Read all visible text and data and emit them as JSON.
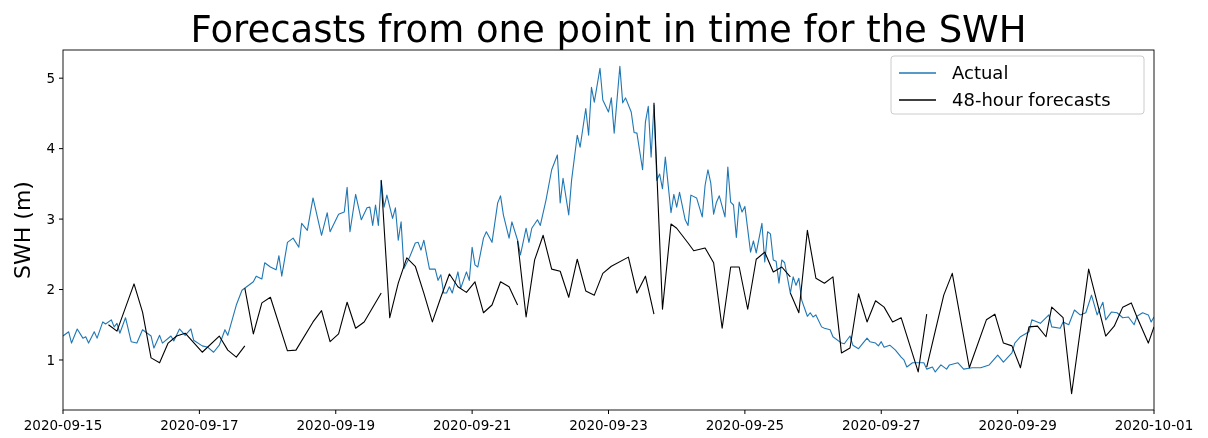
{
  "chart_data": {
    "type": "line",
    "title": "Forecasts from one point in time for the SWH",
    "ylabel": "SWH (m)",
    "xlim": [
      "2020-09-15",
      "2020-10-01"
    ],
    "xticks": [
      "2020-09-15",
      "2020-09-17",
      "2020-09-19",
      "2020-09-21",
      "2020-09-23",
      "2020-09-25",
      "2020-09-27",
      "2020-09-29",
      "2020-10-01"
    ],
    "ylim": [
      0.29,
      5.4
    ],
    "yticks": [
      1,
      2,
      3,
      4,
      5
    ],
    "grid": false,
    "legend": "top right",
    "line_style": "solid",
    "marker": "none",
    "series": [
      {
        "name": "Actual",
        "color": "#1f77b4",
        "x": [
          "2020-09-15T00:00",
          "2020-09-15T02:00",
          "2020-09-15T03:00",
          "2020-09-15T05:00",
          "2020-09-15T07:00",
          "2020-09-15T08:00",
          "2020-09-15T09:00",
          "2020-09-15T11:00",
          "2020-09-15T12:00",
          "2020-09-15T14:00",
          "2020-09-15T15:00",
          "2020-09-15T17:00",
          "2020-09-15T18:00",
          "2020-09-15T19:00",
          "2020-09-15T20:00",
          "2020-09-15T22:00",
          "2020-09-16T00:00",
          "2020-09-16T02:00",
          "2020-09-16T04:00",
          "2020-09-16T07:00",
          "2020-09-16T08:00",
          "2020-09-16T10:00",
          "2020-09-16T11:00",
          "2020-09-16T14:00",
          "2020-09-16T15:00",
          "2020-09-16T17:00",
          "2020-09-16T19:00",
          "2020-09-16T21:00",
          "2020-09-16T22:00",
          "2020-09-17T01:00",
          "2020-09-17T03:00",
          "2020-09-17T05:00",
          "2020-09-17T07:00",
          "2020-09-17T09:00",
          "2020-09-17T10:00",
          "2020-09-17T13:00",
          "2020-09-17T15:00",
          "2020-09-17T19:00",
          "2020-09-17T20:00",
          "2020-09-17T22:00",
          "2020-09-17T23:00",
          "2020-09-18T01:00",
          "2020-09-18T03:00",
          "2020-09-18T04:00",
          "2020-09-18T05:00",
          "2020-09-18T07:00",
          "2020-09-18T09:00",
          "2020-09-18T11:00",
          "2020-09-18T12:00",
          "2020-09-18T14:00",
          "2020-09-18T16:00",
          "2020-09-18T19:00",
          "2020-09-18T21:00",
          "2020-09-18T22:00",
          "2020-09-19T01:00",
          "2020-09-19T03:00",
          "2020-09-19T04:00",
          "2020-09-19T05:00",
          "2020-09-19T07:00",
          "2020-09-19T09:00",
          "2020-09-19T11:00",
          "2020-09-19T12:00",
          "2020-09-19T13:00",
          "2020-09-19T14:00",
          "2020-09-19T15:00",
          "2020-09-19T16:00",
          "2020-09-19T17:00",
          "2020-09-19T18:00",
          "2020-09-19T20:00",
          "2020-09-19T21:00",
          "2020-09-19T22:00",
          "2020-09-19T23:00",
          "2020-09-20T00:00",
          "2020-09-20T02:00",
          "2020-09-20T04:00",
          "2020-09-20T05:00",
          "2020-09-20T06:00",
          "2020-09-20T07:00",
          "2020-09-20T09:00",
          "2020-09-20T11:00",
          "2020-09-20T12:00",
          "2020-09-20T13:00",
          "2020-09-20T14:00",
          "2020-09-20T15:00",
          "2020-09-20T16:00",
          "2020-09-20T17:00",
          "2020-09-20T19:00",
          "2020-09-20T20:00",
          "2020-09-20T22:00",
          "2020-09-20T23:00",
          "2020-09-21T00:00",
          "2020-09-21T01:00",
          "2020-09-21T02:00",
          "2020-09-21T04:00",
          "2020-09-21T05:00",
          "2020-09-21T07:00",
          "2020-09-21T09:00",
          "2020-09-21T10:00",
          "2020-09-21T11:00",
          "2020-09-21T13:00",
          "2020-09-21T14:00",
          "2020-09-21T16:00",
          "2020-09-21T17:00",
          "2020-09-21T19:00",
          "2020-09-21T20:00",
          "2020-09-21T21:00",
          "2020-09-21T23:00",
          "2020-09-22T00:00",
          "2020-09-22T02:00",
          "2020-09-22T04:00",
          "2020-09-22T06:00",
          "2020-09-22T07:00",
          "2020-09-22T08:00",
          "2020-09-22T10:00",
          "2020-09-22T11:00",
          "2020-09-22T13:00",
          "2020-09-22T14:00",
          "2020-09-22T16:00",
          "2020-09-22T17:00",
          "2020-09-22T18:00",
          "2020-09-22T19:00",
          "2020-09-22T21:00",
          "2020-09-22T22:00",
          "2020-09-23T00:00",
          "2020-09-23T01:00",
          "2020-09-23T02:00",
          "2020-09-23T04:00",
          "2020-09-23T05:00",
          "2020-09-23T06:00",
          "2020-09-23T08:00",
          "2020-09-23T09:00",
          "2020-09-23T10:00",
          "2020-09-23T12:00",
          "2020-09-23T13:00",
          "2020-09-23T14:00",
          "2020-09-23T15:00",
          "2020-09-23T16:00",
          "2020-09-23T17:00",
          "2020-09-23T18:00",
          "2020-09-23T19:00",
          "2020-09-23T20:00",
          "2020-09-23T22:00",
          "2020-09-23T23:00",
          "2020-09-24T00:00",
          "2020-09-24T01:00",
          "2020-09-24T03:00",
          "2020-09-24T04:00",
          "2020-09-24T05:00",
          "2020-09-24T07:00",
          "2020-09-24T09:00",
          "2020-09-24T10:00",
          "2020-09-24T11:00",
          "2020-09-24T12:00",
          "2020-09-24T13:00",
          "2020-09-24T14:00",
          "2020-09-24T15:00",
          "2020-09-24T17:00",
          "2020-09-24T18:00",
          "2020-09-24T19:00",
          "2020-09-24T20:00",
          "2020-09-24T21:00",
          "2020-09-24T22:00",
          "2020-09-24T23:00",
          "2020-09-25T00:00",
          "2020-09-25T02:00",
          "2020-09-25T03:00",
          "2020-09-25T04:00",
          "2020-09-25T06:00",
          "2020-09-25T07:00",
          "2020-09-25T08:00",
          "2020-09-25T09:00",
          "2020-09-25T10:00",
          "2020-09-25T11:00",
          "2020-09-25T12:00",
          "2020-09-25T13:00",
          "2020-09-25T14:00",
          "2020-09-25T16:00",
          "2020-09-25T17:00",
          "2020-09-25T18:00",
          "2020-09-25T19:00",
          "2020-09-25T20:00",
          "2020-09-25T22:00",
          "2020-09-25T23:00",
          "2020-09-26T00:00",
          "2020-09-26T01:00",
          "2020-09-26T03:00",
          "2020-09-26T04:00",
          "2020-09-26T06:00",
          "2020-09-26T07:00",
          "2020-09-26T10:00",
          "2020-09-26T11:00",
          "2020-09-26T13:00",
          "2020-09-26T14:00",
          "2020-09-26T16:00",
          "2020-09-26T17:00",
          "2020-09-26T19:00",
          "2020-09-26T20:00",
          "2020-09-26T22:00",
          "2020-09-26T23:00",
          "2020-09-27T00:00",
          "2020-09-27T01:00",
          "2020-09-27T03:00",
          "2020-09-27T05:00",
          "2020-09-27T07:00",
          "2020-09-27T08:00",
          "2020-09-27T09:00",
          "2020-09-27T11:00",
          "2020-09-27T15:00",
          "2020-09-27T16:00",
          "2020-09-27T18:00",
          "2020-09-27T19:00",
          "2020-09-27T21:00",
          "2020-09-27T23:00",
          "2020-09-28T00:00",
          "2020-09-28T03:00",
          "2020-09-28T05:00",
          "2020-09-28T08:00",
          "2020-09-28T11:00",
          "2020-09-28T14:00",
          "2020-09-28T17:00",
          "2020-09-28T19:00",
          "2020-09-28T22:00",
          "2020-09-28T23:00",
          "2020-09-29T01:00",
          "2020-09-29T04:00",
          "2020-09-29T05:00",
          "2020-09-29T08:00",
          "2020-09-29T11:00",
          "2020-09-29T12:00",
          "2020-09-29T15:00",
          "2020-09-29T16:00",
          "2020-09-29T18:00",
          "2020-09-29T20:00",
          "2020-09-29T22:00",
          "2020-09-30T00:00",
          "2020-09-30T02:00",
          "2020-09-30T04:00",
          "2020-09-30T06:00",
          "2020-09-30T07:00",
          "2020-09-30T09:00",
          "2020-09-30T11:00",
          "2020-09-30T13:00",
          "2020-09-30T15:00",
          "2020-09-30T17:00",
          "2020-09-30T18:00",
          "2020-09-30T20:00",
          "2020-09-30T22:00",
          "2020-09-30T23:00",
          "2020-10-01T00:00"
        ],
        "values": [
          1.34,
          1.4,
          1.24,
          1.44,
          1.31,
          1.33,
          1.24,
          1.4,
          1.31,
          1.54,
          1.51,
          1.57,
          1.47,
          1.52,
          1.38,
          1.6,
          1.26,
          1.24,
          1.43,
          1.34,
          1.17,
          1.35,
          1.24,
          1.34,
          1.27,
          1.44,
          1.35,
          1.44,
          1.28,
          1.2,
          1.18,
          1.11,
          1.21,
          1.43,
          1.35,
          1.78,
          1.99,
          2.11,
          2.19,
          2.15,
          2.38,
          2.32,
          2.28,
          2.48,
          2.19,
          2.67,
          2.73,
          2.6,
          2.94,
          2.84,
          3.3,
          2.77,
          3.09,
          2.82,
          3.07,
          3.1,
          3.45,
          2.82,
          3.35,
          2.99,
          3.16,
          3.17,
          2.91,
          3.2,
          2.91,
          3.55,
          3.17,
          3.34,
          3.01,
          3.16,
          2.7,
          2.96,
          2.3,
          2.46,
          2.66,
          2.67,
          2.56,
          2.7,
          2.29,
          2.29,
          2.13,
          2.21,
          1.95,
          1.95,
          2.04,
          1.95,
          2.25,
          2.02,
          2.25,
          2.13,
          2.6,
          2.35,
          2.32,
          2.73,
          2.82,
          2.67,
          3.23,
          3.33,
          3.06,
          2.73,
          2.96,
          2.7,
          2.49,
          2.87,
          2.67,
          2.87,
          2.99,
          2.91,
          3.27,
          3.7,
          3.91,
          3.23,
          3.58,
          3.06,
          3.55,
          4.19,
          4.02,
          4.57,
          4.19,
          4.87,
          4.66,
          5.14,
          4.69,
          4.52,
          4.72,
          4.22,
          5.17,
          4.65,
          4.72,
          4.52,
          4.23,
          4.22,
          3.7,
          4.38,
          4.6,
          3.88,
          4.62,
          3.55,
          3.64,
          3.43,
          3.88,
          3.09,
          3.35,
          3.17,
          3.38,
          2.99,
          2.91,
          3.34,
          3.3,
          3.03,
          3.48,
          3.7,
          3.51,
          3.07,
          3.24,
          3.33,
          3.03,
          3.74,
          3.24,
          3.2,
          2.74,
          3.24,
          3.1,
          3.18,
          2.53,
          2.69,
          2.52,
          2.94,
          2.39,
          2.82,
          2.79,
          2.42,
          2.4,
          2.09,
          2.42,
          2.38,
          1.95,
          2.18,
          2.06,
          2.16,
          1.85,
          1.62,
          1.67,
          1.61,
          1.64,
          1.47,
          1.45,
          1.43,
          1.33,
          1.24,
          1.23,
          1.34,
          1.21,
          1.16,
          1.21,
          1.31,
          1.26,
          1.24,
          1.2,
          1.26,
          1.18,
          1.21,
          1.14,
          1.04,
          1.0,
          0.9,
          0.96,
          0.96,
          0.87,
          0.9,
          0.83,
          0.93,
          0.87,
          0.93,
          0.96,
          0.87,
          0.89,
          0.89,
          0.93,
          1.07,
          0.97,
          1.1,
          1.24,
          1.33,
          1.4,
          1.57,
          1.52,
          1.64,
          1.47,
          1.45,
          1.54,
          1.5,
          1.71,
          1.64,
          1.67,
          1.92,
          1.64,
          1.82,
          1.57,
          1.68,
          1.67,
          1.6,
          1.61,
          1.5,
          1.62,
          1.67,
          1.64,
          1.54,
          1.61
        ]
      },
      {
        "name": "48-hour forecasts",
        "color": "#000000",
        "x": [
          "2020-09-15T16:00",
          "2020-09-15T19:00",
          "2020-09-16T01:00",
          "2020-09-16T04:00",
          "2020-09-16T07:00",
          "2020-09-16T10:00",
          "2020-09-16T13:00",
          "2020-09-16T16:00",
          "2020-09-16T19:00",
          "2020-09-17T01:00",
          "2020-09-17T07:00",
          "2020-09-17T10:00",
          "2020-09-17T13:00",
          "2020-09-17T16:00",
          null,
          "2020-09-17T16:00",
          "2020-09-17T19:00",
          "2020-09-17T22:00",
          "2020-09-18T01:00",
          "2020-09-18T07:00",
          "2020-09-18T10:00",
          "2020-09-18T16:00",
          "2020-09-18T19:00",
          "2020-09-18T22:00",
          "2020-09-19T01:00",
          "2020-09-19T04:00",
          "2020-09-19T07:00",
          "2020-09-19T10:00",
          "2020-09-19T16:00",
          null,
          "2020-09-19T16:00",
          "2020-09-19T19:00",
          "2020-09-19T22:00",
          "2020-09-20T01:00",
          "2020-09-20T04:00",
          "2020-09-20T07:00",
          "2020-09-20T10:00",
          "2020-09-20T13:00",
          "2020-09-20T16:00",
          "2020-09-20T19:00",
          "2020-09-20T22:00",
          "2020-09-21T01:00",
          "2020-09-21T04:00",
          "2020-09-21T07:00",
          "2020-09-21T10:00",
          "2020-09-21T13:00",
          "2020-09-21T16:00",
          null,
          "2020-09-21T16:00",
          "2020-09-21T19:00",
          "2020-09-21T22:00",
          "2020-09-22T01:00",
          "2020-09-22T04:00",
          "2020-09-22T07:00",
          "2020-09-22T10:00",
          "2020-09-22T13:00",
          "2020-09-22T16:00",
          "2020-09-22T19:00",
          "2020-09-22T22:00",
          "2020-09-23T01:00",
          "2020-09-23T07:00",
          "2020-09-23T10:00",
          "2020-09-23T13:00",
          "2020-09-23T16:00",
          null,
          "2020-09-23T16:00",
          "2020-09-23T19:00",
          "2020-09-23T22:00",
          "2020-09-24T00:00",
          "2020-09-24T04:00",
          "2020-09-24T06:00",
          "2020-09-24T10:00",
          "2020-09-24T13:00",
          "2020-09-24T16:00",
          "2020-09-24T19:00",
          "2020-09-24T22:00",
          "2020-09-25T01:00",
          "2020-09-25T04:00",
          "2020-09-25T07:00",
          "2020-09-25T10:00",
          "2020-09-25T13:00",
          "2020-09-25T16:00",
          null,
          "2020-09-25T16:00",
          "2020-09-25T19:00",
          "2020-09-25T22:00",
          "2020-09-26T01:00",
          "2020-09-26T04:00",
          "2020-09-26T07:00",
          "2020-09-26T10:00",
          "2020-09-26T13:00",
          "2020-09-26T16:00",
          "2020-09-26T19:00",
          "2020-09-26T22:00",
          "2020-09-27T01:00",
          "2020-09-27T04:00",
          "2020-09-27T07:00",
          "2020-09-27T13:00",
          "2020-09-27T16:00",
          null,
          "2020-09-27T16:00",
          "2020-09-27T22:00",
          "2020-09-28T01:00",
          "2020-09-28T07:00",
          "2020-09-28T13:00",
          "2020-09-28T16:00",
          "2020-09-28T19:00",
          "2020-09-28T22:00",
          "2020-09-29T01:00",
          "2020-09-29T04:00",
          "2020-09-29T07:00",
          "2020-09-29T10:00",
          "2020-09-29T12:00",
          "2020-09-29T16:00",
          "2020-09-29T19:00",
          "2020-09-30T01:00",
          "2020-09-30T07:00",
          "2020-09-30T10:00",
          "2020-09-30T13:00",
          "2020-09-30T16:00",
          "2020-09-30T18:00",
          "2020-09-30T22:00",
          "2020-10-01T00:00"
        ],
        "values": [
          1.5,
          1.41,
          2.08,
          1.68,
          1.03,
          0.96,
          1.24,
          1.34,
          1.38,
          1.11,
          1.34,
          1.14,
          1.04,
          1.2,
          null,
          2.02,
          1.37,
          1.81,
          1.89,
          1.13,
          1.14,
          1.54,
          1.7,
          1.26,
          1.37,
          1.82,
          1.45,
          1.54,
          1.95,
          null,
          3.55,
          1.6,
          2.09,
          2.45,
          2.33,
          1.95,
          1.54,
          1.89,
          2.22,
          2.04,
          1.96,
          2.11,
          1.67,
          1.78,
          2.11,
          2.04,
          1.78,
          null,
          2.69,
          1.61,
          2.42,
          2.77,
          2.29,
          2.26,
          1.89,
          2.43,
          1.98,
          1.92,
          2.23,
          2.33,
          2.46,
          1.95,
          2.19,
          1.65,
          null,
          4.65,
          1.72,
          2.93,
          2.87,
          2.66,
          2.55,
          2.59,
          2.38,
          1.45,
          2.32,
          2.32,
          1.72,
          2.43,
          2.53,
          2.25,
          2.32,
          2.18,
          null,
          1.95,
          1.67,
          2.84,
          2.16,
          2.09,
          2.18,
          1.1,
          1.17,
          1.94,
          1.54,
          1.84,
          1.75,
          1.54,
          1.6,
          0.83,
          1.65,
          null,
          0.9,
          1.92,
          2.23,
          0.89,
          1.57,
          1.65,
          1.24,
          1.2,
          0.89,
          1.47,
          1.48,
          1.33,
          1.75,
          1.6,
          0.52,
          2.29,
          1.34,
          1.48,
          1.75,
          1.81,
          1.61,
          1.24,
          1.47
        ]
      }
    ]
  }
}
